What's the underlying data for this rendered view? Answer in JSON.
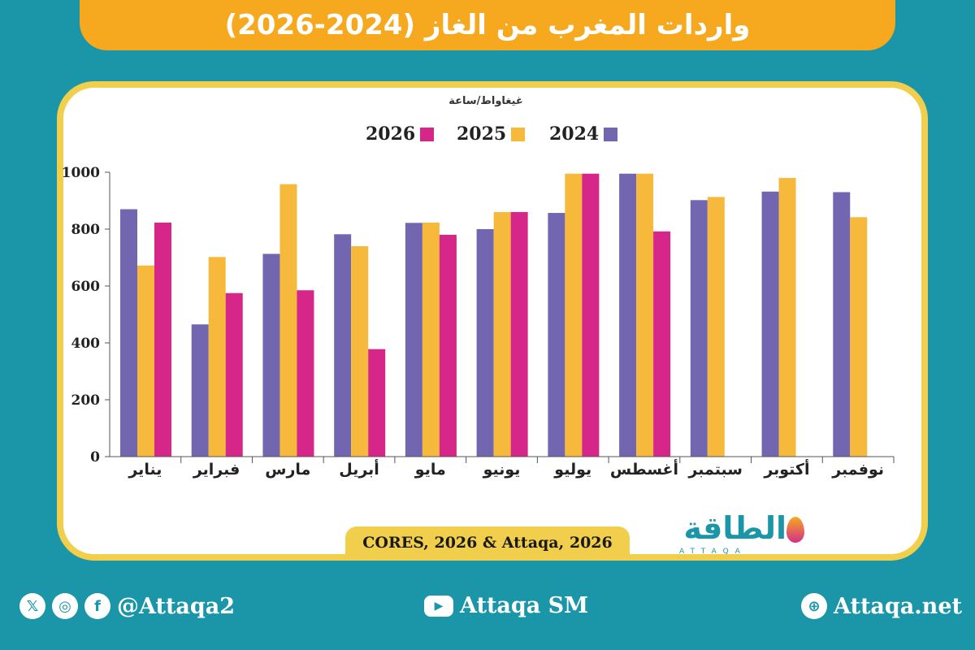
{
  "header": {
    "title": "واردات المغرب من الغاز (2024-2026)"
  },
  "chart_data": {
    "type": "bar",
    "unit_label": "غيغاواط/ساعة",
    "categories": [
      "يناير",
      "فبراير",
      "مارس",
      "أبريل",
      "مايو",
      "يونيو",
      "يوليو",
      "أغسطس",
      "سبتمبر",
      "أكتوبر",
      "نوفمبر"
    ],
    "series": [
      {
        "name": "2024",
        "color": "#7366b0",
        "values": [
          870,
          465,
          713,
          782,
          822,
          800,
          857,
          995,
          902,
          932,
          930
        ]
      },
      {
        "name": "2025",
        "color": "#f6b93b",
        "values": [
          672,
          702,
          958,
          740,
          823,
          860,
          995,
          995,
          913,
          980,
          842
        ]
      },
      {
        "name": "2026",
        "color": "#d6268a",
        "values": [
          823,
          575,
          585,
          378,
          780,
          860,
          995,
          792,
          null,
          null,
          null
        ]
      }
    ],
    "y_ticks": [
      0,
      200,
      400,
      600,
      800,
      1000
    ],
    "ylim": [
      0,
      1000
    ],
    "legend_position": "top-center",
    "grid": false
  },
  "source": {
    "text": "CORES, 2026 & Attaqa, 2026"
  },
  "logo": {
    "word": "الطاقة",
    "sub": "ATTAQA"
  },
  "footer": {
    "social_handle": "@Attaqa2",
    "youtube": "Attaqa SM",
    "website": "Attaqa.net",
    "icons": [
      "x-icon",
      "instagram-icon",
      "facebook-icon",
      "youtube-icon",
      "globe-icon"
    ]
  }
}
